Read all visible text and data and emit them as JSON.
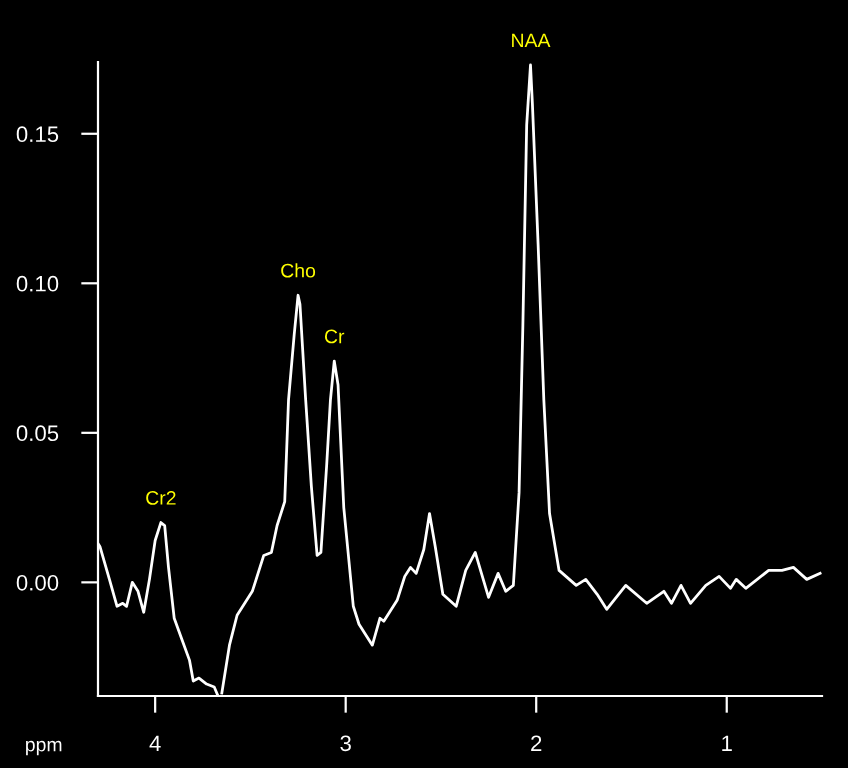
{
  "chart_data": {
    "type": "line",
    "xlabel": "ppm",
    "x": [
      4.3,
      4.29,
      4.24,
      4.2,
      4.17,
      4.15,
      4.12,
      4.09,
      4.06,
      4.03,
      4.0,
      3.97,
      3.95,
      3.93,
      3.9,
      3.86,
      3.82,
      3.8,
      3.77,
      3.73,
      3.69,
      3.67,
      3.66,
      3.65,
      3.61,
      3.57,
      3.53,
      3.49,
      3.43,
      3.39,
      3.36,
      3.32,
      3.3,
      3.27,
      3.25,
      3.24,
      3.21,
      3.18,
      3.15,
      3.13,
      3.1,
      3.08,
      3.06,
      3.04,
      3.01,
      2.96,
      2.93,
      2.86,
      2.82,
      2.8,
      2.73,
      2.69,
      2.66,
      2.63,
      2.59,
      2.56,
      2.53,
      2.49,
      2.42,
      2.37,
      2.32,
      2.25,
      2.2,
      2.16,
      2.12,
      2.09,
      2.07,
      2.05,
      2.03,
      2.02,
      1.99,
      1.96,
      1.93,
      1.88,
      1.79,
      1.74,
      1.68,
      1.63,
      1.53,
      1.42,
      1.33,
      1.29,
      1.24,
      1.19,
      1.11,
      1.04,
      0.98,
      0.95,
      0.9,
      0.78,
      0.71,
      0.65,
      0.58,
      0.51
    ],
    "series": [
      {
        "color": "#ffffff",
        "values": [
          0.013,
          0.012,
          0.001,
          -0.008,
          -0.007,
          -0.008,
          0.0,
          -0.003,
          -0.01,
          0.001,
          0.014,
          0.02,
          0.019,
          0.005,
          -0.012,
          -0.019,
          -0.026,
          -0.033,
          -0.032,
          -0.034,
          -0.035,
          -0.038,
          null,
          -0.037,
          -0.021,
          -0.011,
          -0.007,
          -0.003,
          0.009,
          0.01,
          0.019,
          0.027,
          0.061,
          0.083,
          0.096,
          0.093,
          0.061,
          0.032,
          0.009,
          0.01,
          0.039,
          0.061,
          0.074,
          0.066,
          0.025,
          -0.008,
          -0.014,
          -0.021,
          -0.012,
          -0.013,
          -0.006,
          0.002,
          0.005,
          0.003,
          0.011,
          0.023,
          0.012,
          -0.004,
          -0.008,
          0.004,
          0.01,
          -0.005,
          0.003,
          -0.003,
          -0.001,
          0.03,
          0.086,
          0.153,
          0.173,
          0.16,
          0.113,
          0.061,
          0.023,
          0.004,
          -0.001,
          0.001,
          -0.004,
          -0.009,
          -0.001,
          -0.007,
          -0.003,
          -0.007,
          -0.001,
          -0.007,
          -0.001,
          0.002,
          -0.002,
          0.001,
          -0.002,
          0.004,
          0.004,
          0.005,
          0.001,
          0.003
        ]
      }
    ],
    "annotations": [
      {
        "text": "Cr2",
        "x": 3.97,
        "y": 0.02
      },
      {
        "text": "Cho",
        "x": 3.25,
        "y": 0.096
      },
      {
        "text": "Cr",
        "x": 3.06,
        "y": 0.074
      },
      {
        "text": "NAA",
        "x": 2.03,
        "y": 0.173
      }
    ],
    "xlim": [
      4.3,
      0.5
    ],
    "ylim": [
      -0.038,
      0.174
    ],
    "xticks": [
      4,
      3,
      2,
      1
    ],
    "yticks": [
      {
        "value": 0.0,
        "label": "0.00"
      },
      {
        "value": 0.05,
        "label": "0.05"
      },
      {
        "value": 0.1,
        "label": "0.10"
      },
      {
        "value": 0.15,
        "label": "0.15"
      }
    ],
    "grid": false,
    "legend": false,
    "marker": "none",
    "line_style": "solid"
  }
}
